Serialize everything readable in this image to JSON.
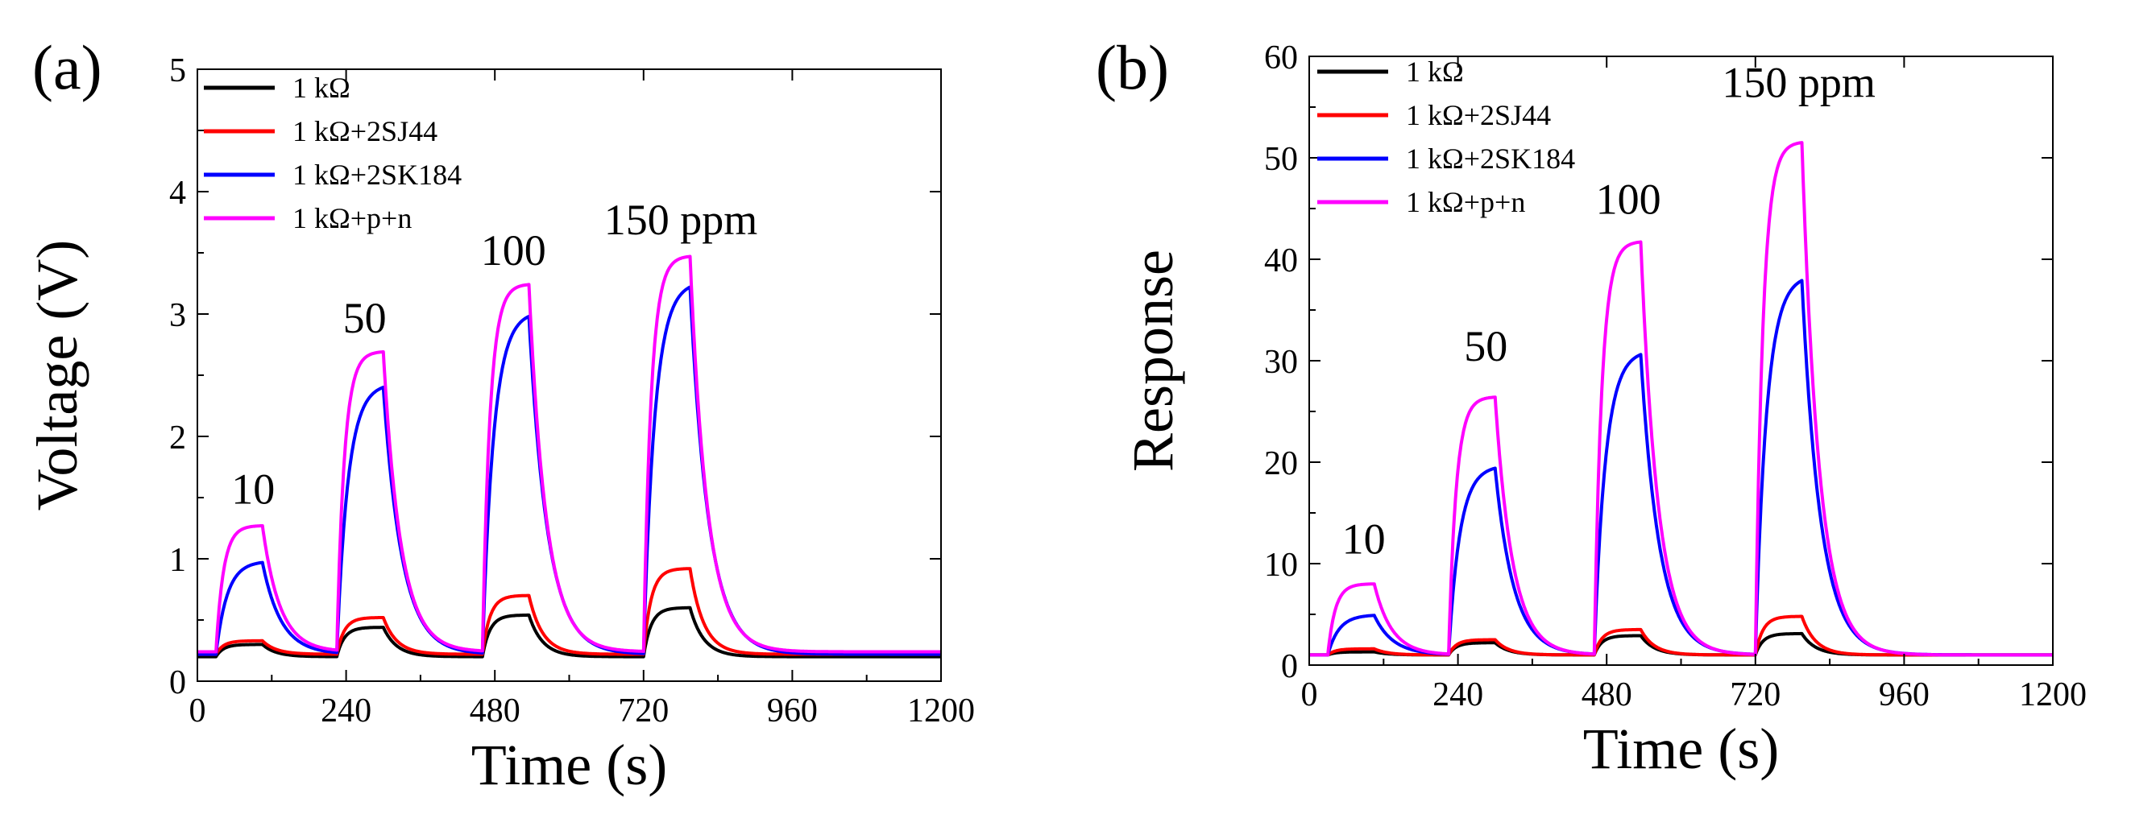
{
  "chart_data": [
    {
      "panel_label": "(a)",
      "type": "line",
      "xlabel": "Time (s)",
      "ylabel": "Voltage (V)",
      "xlim": [
        0,
        1200
      ],
      "ylim": [
        0,
        5
      ],
      "xticks": [
        0,
        240,
        480,
        720,
        960,
        1200
      ],
      "yticks": [
        0,
        1,
        2,
        3,
        4,
        5
      ],
      "legend": [
        "1 kΩ",
        "1 kΩ+2SJ44",
        "1 kΩ+2SK184",
        "1 kΩ+p+n"
      ],
      "annotations": [
        {
          "text": "10",
          "x": 90,
          "y": 1.45
        },
        {
          "text": "50",
          "x": 270,
          "y": 2.85
        },
        {
          "text": "100",
          "x": 510,
          "y": 3.4
        },
        {
          "text": "150 ppm",
          "x": 780,
          "y": 3.65
        }
      ],
      "pulses": [
        {
          "on": 30,
          "off": 105,
          "ppm": 10
        },
        {
          "on": 225,
          "off": 300,
          "ppm": 50
        },
        {
          "on": 460,
          "off": 535,
          "ppm": 100
        },
        {
          "on": 720,
          "off": 795,
          "ppm": 150
        }
      ],
      "series": [
        {
          "name": "1 kΩ",
          "color": "#000000",
          "baseline": 0.2,
          "peaks": [
            0.3,
            0.44,
            0.54,
            0.6
          ],
          "rise_tau": 12,
          "decay_tau": 22
        },
        {
          "name": "1 kΩ+2SJ44",
          "color": "#ff0000",
          "baseline": 0.22,
          "peaks": [
            0.33,
            0.52,
            0.7,
            0.92
          ],
          "rise_tau": 12,
          "decay_tau": 22
        },
        {
          "name": "1 kΩ+2SK184",
          "color": "#0000ff",
          "baseline": 0.22,
          "peaks": [
            0.97,
            2.4,
            2.98,
            3.22
          ],
          "rise_tau": 18,
          "decay_tau": 30
        },
        {
          "name": "1 kΩ+p+n",
          "color": "#ff00ff",
          "baseline": 0.24,
          "peaks": [
            1.27,
            2.69,
            3.24,
            3.47
          ],
          "rise_tau": 12,
          "decay_tau": 28
        }
      ]
    },
    {
      "panel_label": "(b)",
      "type": "line",
      "xlabel": "Time (s)",
      "ylabel": "Response",
      "xlim": [
        0,
        1200
      ],
      "ylim": [
        0,
        60
      ],
      "xticks": [
        0,
        240,
        480,
        720,
        960,
        1200
      ],
      "yticks": [
        0,
        10,
        20,
        30,
        40,
        50,
        60
      ],
      "legend": [
        "1 kΩ",
        "1 kΩ+2SJ44",
        "1 kΩ+2SK184",
        "1 kΩ+p+n"
      ],
      "annotations": [
        {
          "text": "10",
          "x": 88,
          "y": 11
        },
        {
          "text": "50",
          "x": 285,
          "y": 30
        },
        {
          "text": "100",
          "x": 515,
          "y": 44.5
        },
        {
          "text": "150 ppm",
          "x": 790,
          "y": 56
        }
      ],
      "pulses": [
        {
          "on": 30,
          "off": 105,
          "ppm": 10
        },
        {
          "on": 225,
          "off": 300,
          "ppm": 50
        },
        {
          "on": 460,
          "off": 535,
          "ppm": 100
        },
        {
          "on": 720,
          "off": 795,
          "ppm": 150
        }
      ],
      "series": [
        {
          "name": "1 kΩ",
          "color": "#000000",
          "baseline": 1.0,
          "peaks": [
            1.3,
            2.2,
            2.9,
            3.1
          ],
          "rise_tau": 12,
          "decay_tau": 22
        },
        {
          "name": "1 kΩ+2SJ44",
          "color": "#ff0000",
          "baseline": 1.0,
          "peaks": [
            1.6,
            2.5,
            3.5,
            4.8
          ],
          "rise_tau": 12,
          "decay_tau": 22
        },
        {
          "name": "1 kΩ+2SK184",
          "color": "#0000ff",
          "baseline": 1.0,
          "peaks": [
            4.9,
            19.4,
            30.6,
            37.9
          ],
          "rise_tau": 18,
          "decay_tau": 30
        },
        {
          "name": "1 kΩ+p+n",
          "color": "#ff00ff",
          "baseline": 1.0,
          "peaks": [
            8.0,
            26.4,
            41.7,
            51.5
          ],
          "rise_tau": 12,
          "decay_tau": 28
        }
      ]
    }
  ]
}
